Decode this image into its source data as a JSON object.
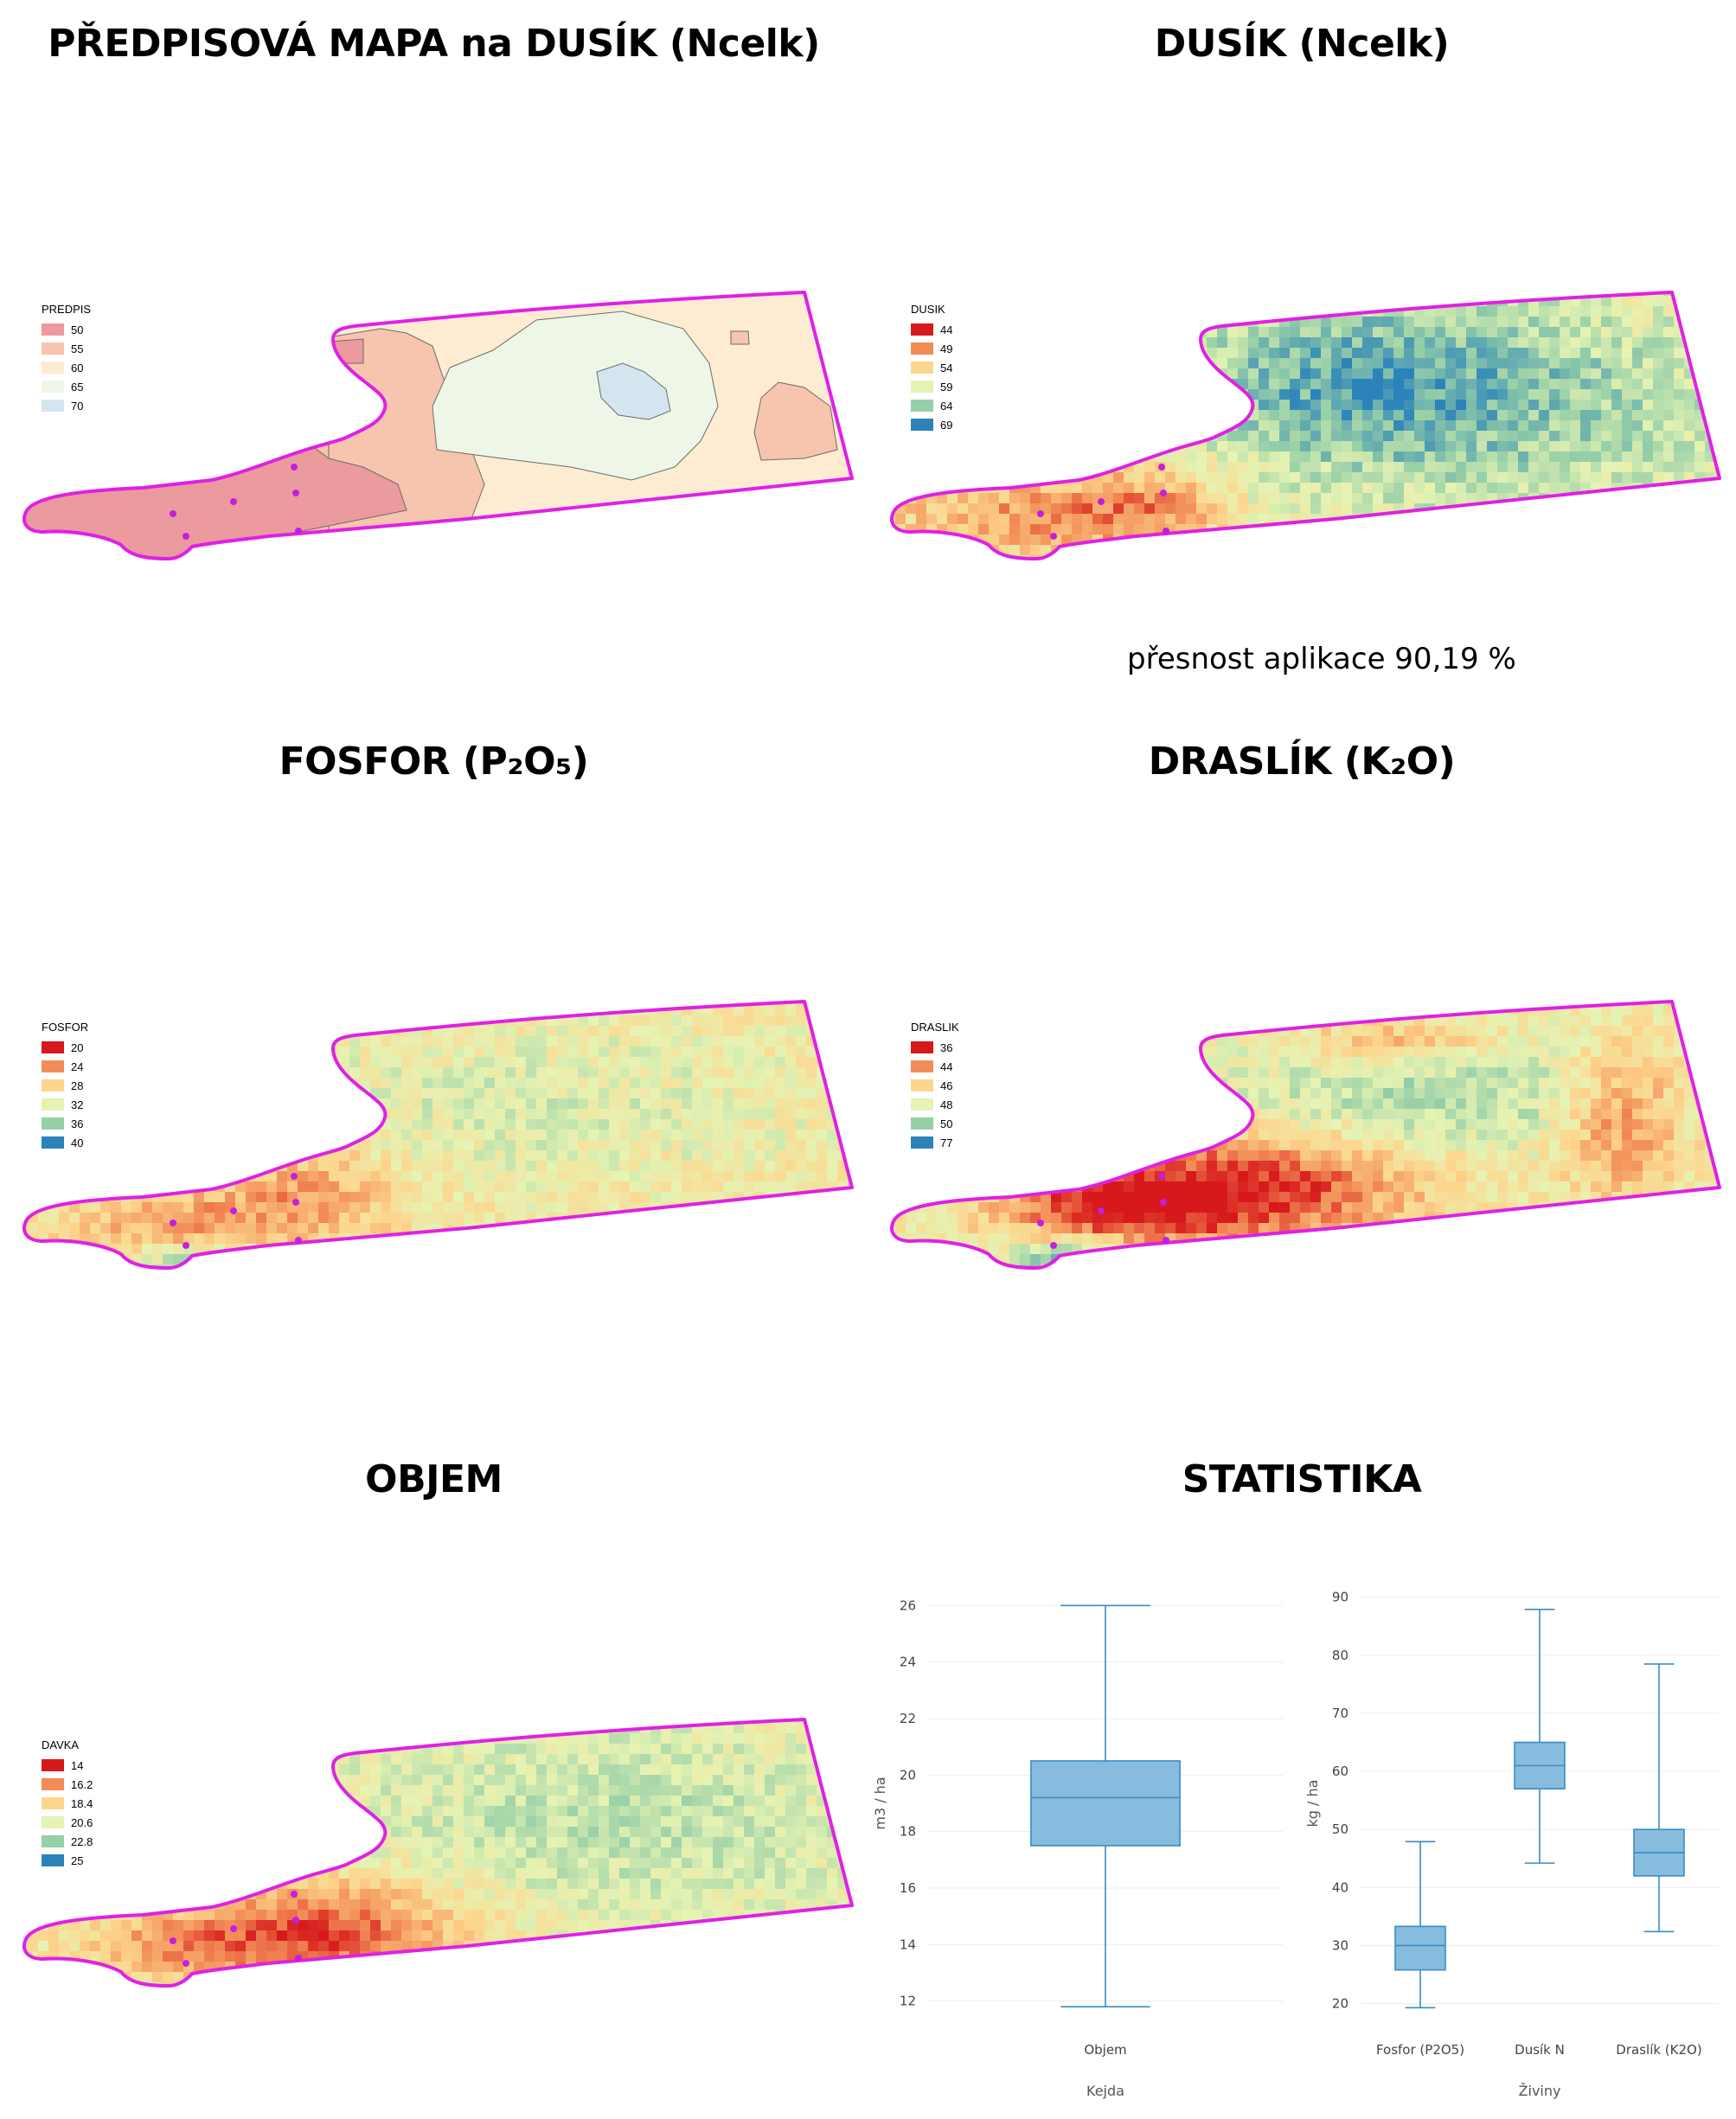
{
  "panels": {
    "predpis": {
      "title": "PŘEDPISOVÁ MAPA na DUSÍK (Ncelk)",
      "legend_title": "PREDPIS",
      "legend": [
        {
          "label": "50",
          "color": "#eb9a9e"
        },
        {
          "label": "55",
          "color": "#f7c4ad"
        },
        {
          "label": "60",
          "color": "#fdecd1"
        },
        {
          "label": "65",
          "color": "#eef7e7"
        },
        {
          "label": "70",
          "color": "#d3e6f0"
        }
      ]
    },
    "dusik": {
      "title": "DUSÍK (Ncelk)",
      "legend_title": "DUSIK",
      "legend": [
        {
          "label": "44",
          "color": "#d7191c"
        },
        {
          "label": "49",
          "color": "#f28c56"
        },
        {
          "label": "54",
          "color": "#fdd68e"
        },
        {
          "label": "59",
          "color": "#e6f3b3"
        },
        {
          "label": "64",
          "color": "#97cfa8"
        },
        {
          "label": "69",
          "color": "#2b83ba"
        }
      ],
      "accuracy": "přesnost aplikace 90,19 %"
    },
    "fosfor": {
      "title": "FOSFOR (P₂O₅)",
      "legend_title": "FOSFOR",
      "legend": [
        {
          "label": "20",
          "color": "#d7191c"
        },
        {
          "label": "24",
          "color": "#f28c56"
        },
        {
          "label": "28",
          "color": "#fdd68e"
        },
        {
          "label": "32",
          "color": "#e6f3b3"
        },
        {
          "label": "36",
          "color": "#97cfa8"
        },
        {
          "label": "40",
          "color": "#2b83ba"
        }
      ]
    },
    "draslik": {
      "title": "DRASLÍK (K₂O)",
      "legend_title": "DRASLIK",
      "legend": [
        {
          "label": "36",
          "color": "#d7191c"
        },
        {
          "label": "44",
          "color": "#f28c56"
        },
        {
          "label": "46",
          "color": "#fdd68e"
        },
        {
          "label": "48",
          "color": "#e6f3b3"
        },
        {
          "label": "50",
          "color": "#97cfa8"
        },
        {
          "label": "77",
          "color": "#2b83ba"
        }
      ]
    },
    "objem": {
      "title": "OBJEM",
      "legend_title": "DAVKA",
      "legend": [
        {
          "label": "14",
          "color": "#d7191c"
        },
        {
          "label": "16.2",
          "color": "#f28c56"
        },
        {
          "label": "18.4",
          "color": "#fdd68e"
        },
        {
          "label": "20.6",
          "color": "#e6f3b3"
        },
        {
          "label": "22.8",
          "color": "#97cfa8"
        },
        {
          "label": "25",
          "color": "#2b83ba"
        }
      ]
    },
    "statistika": {
      "title": "STATISTIKA"
    }
  },
  "colors": {
    "boundary": "#e020e6",
    "sample_point": "#c21fe0",
    "box_fill": "#88bcdf",
    "box_stroke": "#3a8cc4"
  },
  "chart_data": [
    {
      "type": "box",
      "xlabel": "Kejda",
      "ylabel": "m3 / ha",
      "ylim": [
        11.5,
        26.5
      ],
      "yticks": [
        12,
        14,
        16,
        18,
        20,
        22,
        24,
        26
      ],
      "categories": [
        "Objem"
      ],
      "boxes": [
        {
          "name": "Objem",
          "min": 11.8,
          "q1": 17.5,
          "median": 19.2,
          "q3": 20.5,
          "max": 26.0
        }
      ]
    },
    {
      "type": "box",
      "xlabel": "Živiny",
      "ylabel": "kg / ha",
      "ylim": [
        18,
        91
      ],
      "yticks": [
        20,
        30,
        40,
        50,
        60,
        70,
        80,
        90
      ],
      "categories": [
        "Fosfor (P2O5)",
        "Dusík N",
        "Draslík (K2O)"
      ],
      "boxes": [
        {
          "name": "Fosfor (P2O5)",
          "min": 19.3,
          "q1": 25.8,
          "median": 30.0,
          "q3": 33.3,
          "max": 47.9
        },
        {
          "name": "Dusík N",
          "min": 44.2,
          "q1": 57.0,
          "median": 61.0,
          "q3": 65.0,
          "max": 87.9
        },
        {
          "name": "Draslík (K2O)",
          "min": 32.4,
          "q1": 42.0,
          "median": 46.0,
          "q3": 50.0,
          "max": 78.5
        }
      ]
    }
  ]
}
